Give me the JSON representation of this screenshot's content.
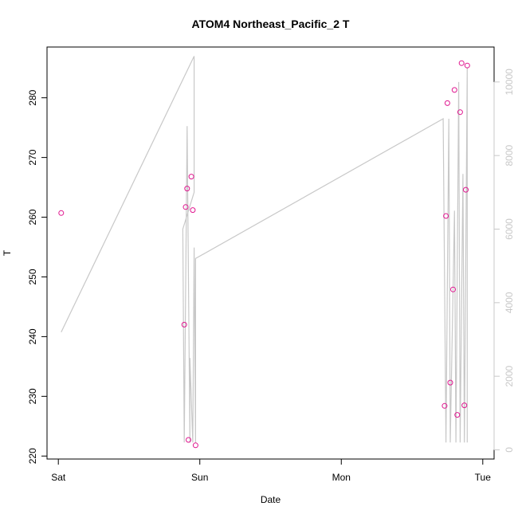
{
  "chart_data": {
    "type": "scatter",
    "title": "ATOM4 Northeast_Pacific_2 T",
    "xlabel": "Date",
    "ylabel": "T",
    "x_ticks": [
      {
        "label": "Sat",
        "value": 0
      },
      {
        "label": "Sun",
        "value": 1
      },
      {
        "label": "Mon",
        "value": 2
      },
      {
        "label": "Tue",
        "value": 3
      }
    ],
    "xlim": [
      -0.08,
      3.08
    ],
    "ylim": [
      219.5,
      288.5
    ],
    "y_ticks": [
      220,
      230,
      240,
      250,
      260,
      270,
      280
    ],
    "y2lim": [
      -250,
      10950
    ],
    "y2_ticks": [
      0,
      2000,
      4000,
      6000,
      8000,
      10000
    ],
    "grid": false,
    "colors": {
      "points": "#e0168f",
      "line": "#c8c8c8",
      "axis": "#000000",
      "axis2": "#c8c8c8"
    },
    "series": [
      {
        "type": "scatter",
        "axis": "left",
        "x": [
          0.02,
          0.89,
          0.9,
          0.91,
          0.92,
          0.94,
          0.95,
          0.97,
          2.73,
          2.74,
          2.75,
          2.77,
          2.79,
          2.8,
          2.82,
          2.84,
          2.85,
          2.87,
          2.88,
          2.89
        ],
        "y": [
          260.7,
          242.0,
          261.7,
          264.8,
          222.7,
          266.8,
          261.2,
          221.8,
          228.4,
          260.2,
          279.1,
          232.3,
          247.9,
          281.3,
          226.9,
          277.6,
          285.8,
          228.5,
          264.6,
          285.4
        ]
      },
      {
        "type": "line",
        "axis": "right",
        "x": [
          0.02,
          0.96,
          0.96,
          0.88,
          0.89,
          0.91,
          0.93,
          0.93,
          0.95,
          0.96,
          0.97,
          0.97,
          2.72,
          2.74,
          2.76,
          2.77,
          2.8,
          2.81,
          2.83,
          2.84,
          2.86,
          2.87,
          2.89,
          2.89
        ],
        "y": [
          3200,
          10700,
          7000,
          6000,
          200,
          8800,
          200,
          2500,
          200,
          5500,
          200,
          5200,
          9000,
          200,
          9000,
          200,
          6500,
          200,
          10000,
          200,
          7500,
          200,
          10400,
          200
        ]
      }
    ]
  }
}
